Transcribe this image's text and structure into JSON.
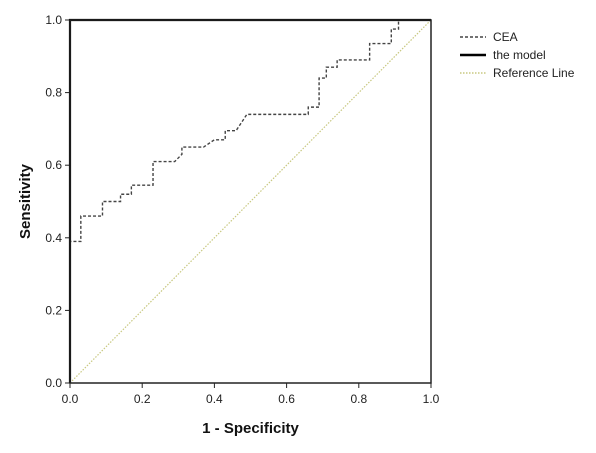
{
  "chart_data": {
    "type": "line",
    "xlabel": "1 - Specificity",
    "ylabel": "Sensitivity",
    "xlim": [
      0.0,
      1.0
    ],
    "ylim": [
      0.0,
      1.0
    ],
    "x_ticks": [
      "0.0",
      "0.2",
      "0.4",
      "0.6",
      "0.8",
      "1.0"
    ],
    "y_ticks": [
      "0.0",
      "0.2",
      "0.4",
      "0.6",
      "0.8",
      "1.0"
    ],
    "grid": false,
    "legend_position": "top-right outside",
    "series": [
      {
        "name": "CEA",
        "style": "dashed",
        "color": "#444444",
        "points": [
          [
            0.0,
            0.0
          ],
          [
            0.0,
            0.39
          ],
          [
            0.03,
            0.39
          ],
          [
            0.03,
            0.46
          ],
          [
            0.09,
            0.46
          ],
          [
            0.09,
            0.5
          ],
          [
            0.14,
            0.5
          ],
          [
            0.14,
            0.52
          ],
          [
            0.17,
            0.52
          ],
          [
            0.17,
            0.545
          ],
          [
            0.23,
            0.545
          ],
          [
            0.23,
            0.61
          ],
          [
            0.29,
            0.61
          ],
          [
            0.31,
            0.63
          ],
          [
            0.31,
            0.65
          ],
          [
            0.37,
            0.65
          ],
          [
            0.4,
            0.67
          ],
          [
            0.43,
            0.67
          ],
          [
            0.43,
            0.695
          ],
          [
            0.46,
            0.695
          ],
          [
            0.49,
            0.74
          ],
          [
            0.66,
            0.74
          ],
          [
            0.66,
            0.76
          ],
          [
            0.69,
            0.76
          ],
          [
            0.69,
            0.84
          ],
          [
            0.71,
            0.84
          ],
          [
            0.71,
            0.87
          ],
          [
            0.74,
            0.87
          ],
          [
            0.74,
            0.89
          ],
          [
            0.83,
            0.89
          ],
          [
            0.83,
            0.935
          ],
          [
            0.89,
            0.935
          ],
          [
            0.89,
            0.975
          ],
          [
            0.91,
            0.975
          ],
          [
            0.91,
            1.0
          ],
          [
            1.0,
            1.0
          ]
        ]
      },
      {
        "name": "the model",
        "style": "solid",
        "color": "#000000",
        "points": [
          [
            0.0,
            0.0
          ],
          [
            0.0,
            1.0
          ],
          [
            1.0,
            1.0
          ]
        ]
      },
      {
        "name": "Reference Line",
        "style": "solid",
        "color": "#c8c880",
        "points": [
          [
            0.0,
            0.0
          ],
          [
            1.0,
            1.0
          ]
        ]
      }
    ]
  }
}
